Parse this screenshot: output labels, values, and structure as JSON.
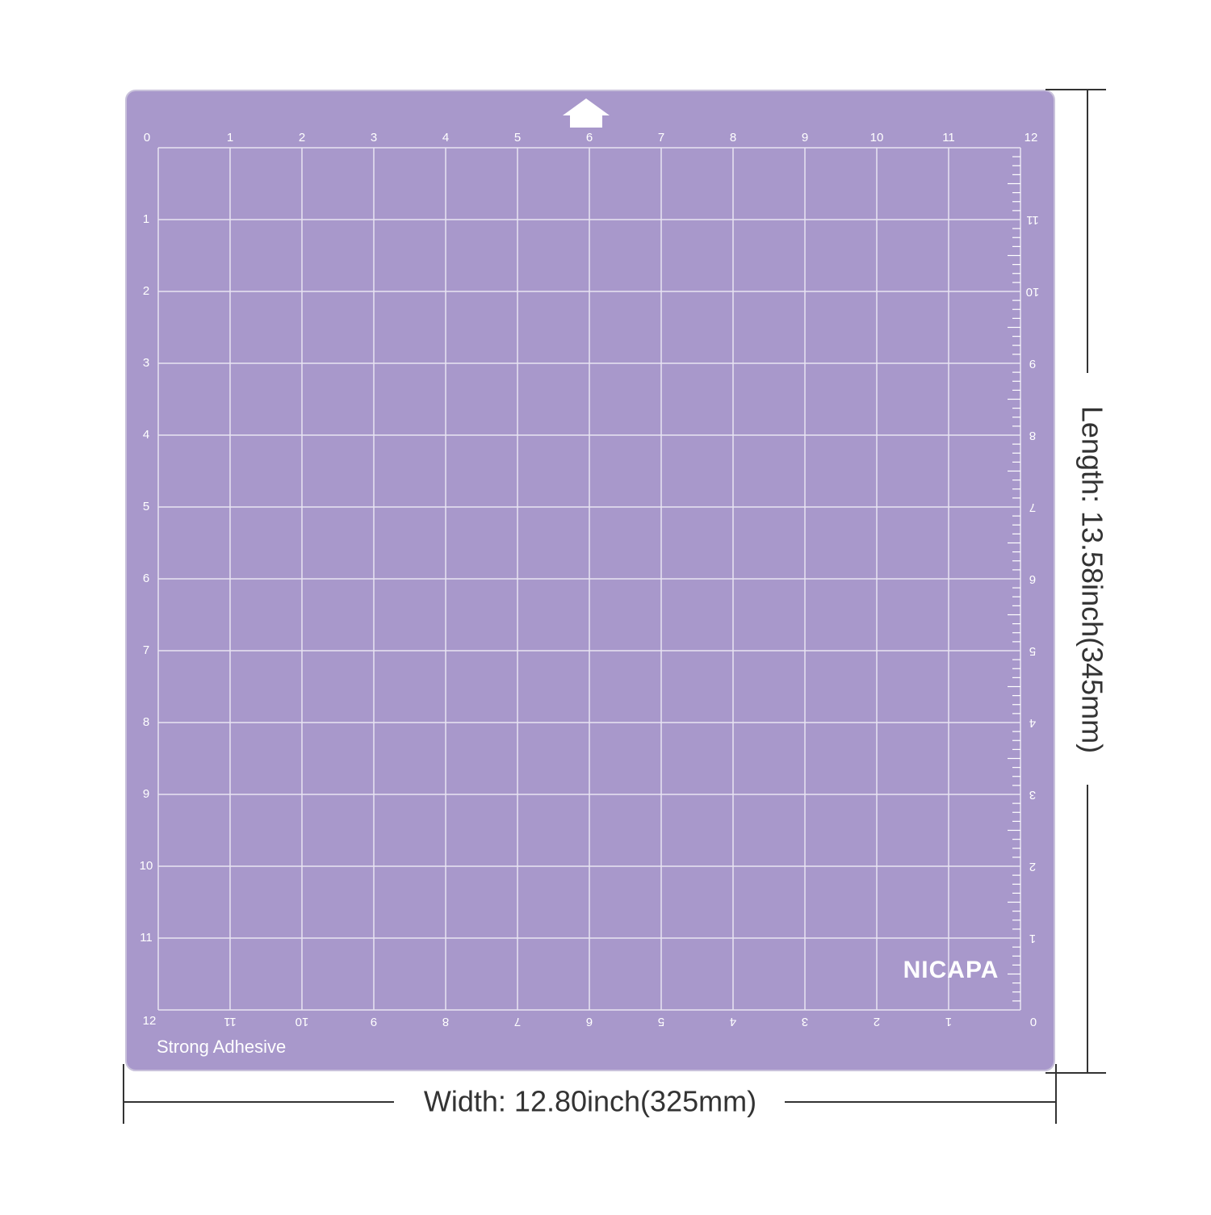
{
  "mat": {
    "top_scale": [
      "0",
      "1",
      "2",
      "3",
      "4",
      "5",
      "6",
      "7",
      "8",
      "9",
      "10",
      "11",
      "12"
    ],
    "left_scale": [
      "1",
      "2",
      "3",
      "4",
      "5",
      "6",
      "7",
      "8",
      "9",
      "10",
      "11"
    ],
    "bottom_scale": [
      "12",
      "11",
      "10",
      "9",
      "8",
      "7",
      "6",
      "5",
      "4",
      "3",
      "2",
      "1",
      "0"
    ],
    "right_scale": [
      "11",
      "10",
      "9",
      "8",
      "7",
      "6",
      "5",
      "4",
      "3",
      "2",
      "1"
    ],
    "brand": "NICAPA",
    "note": "Strong Adhesive"
  },
  "dimensions": {
    "width": "Width: 12.80inch(325mm)",
    "length": "Length: 13.58inch(345mm)"
  }
}
